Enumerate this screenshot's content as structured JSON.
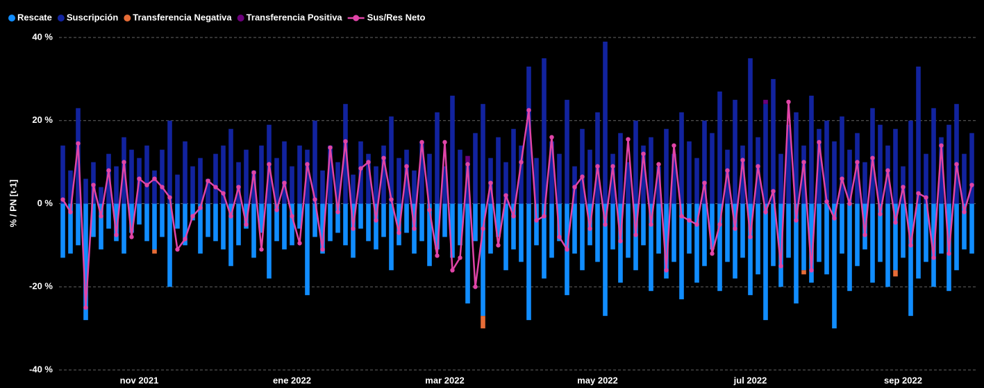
{
  "chart_data": {
    "type": "bar-line",
    "y_label": "% / PN [t-1]",
    "ylim": [
      -40,
      40
    ],
    "yticks": [
      {
        "value": -40,
        "label": "-40 %"
      },
      {
        "value": -20,
        "label": "-20 %"
      },
      {
        "value": 0,
        "label": "0 %"
      },
      {
        "value": 20,
        "label": "20 %"
      },
      {
        "value": 40,
        "label": "40 %"
      }
    ],
    "grid": true,
    "legend": "top-left",
    "categories": [
      null,
      null,
      null,
      null,
      null,
      null,
      null,
      null,
      null,
      null,
      "nov 2021",
      null,
      null,
      null,
      null,
      null,
      null,
      null,
      null,
      null,
      null,
      null,
      null,
      null,
      null,
      null,
      null,
      null,
      null,
      null,
      "ene 2022",
      null,
      null,
      null,
      null,
      null,
      null,
      null,
      null,
      null,
      null,
      null,
      null,
      null,
      null,
      null,
      null,
      null,
      null,
      null,
      "mar 2022",
      null,
      null,
      null,
      null,
      null,
      null,
      null,
      null,
      null,
      null,
      null,
      null,
      null,
      null,
      null,
      null,
      null,
      null,
      null,
      "may 2022",
      null,
      null,
      null,
      null,
      null,
      null,
      null,
      null,
      null,
      null,
      null,
      null,
      null,
      null,
      null,
      null,
      null,
      null,
      null,
      "jul 2022",
      null,
      null,
      null,
      null,
      null,
      null,
      null,
      null,
      null,
      null,
      null,
      null,
      null,
      null,
      null,
      null,
      null,
      null,
      null,
      "sep 2022",
      null,
      null,
      null,
      null,
      null,
      null,
      null,
      null,
      null
    ],
    "series": [
      {
        "name": "Rescate",
        "color": "#118dff",
        "values": [
          -13,
          -12,
          -10,
          -28,
          -8,
          -11,
          -6,
          -9,
          -12,
          -7,
          -5,
          -9,
          -11,
          -8,
          -20,
          -6,
          -10,
          -4,
          -12,
          -8,
          -9,
          -11,
          -15,
          -10,
          -6,
          -13,
          -7,
          -18,
          -9,
          -11,
          -10,
          -6,
          -22,
          -8,
          -12,
          -9,
          -7,
          -10,
          -13,
          -6,
          -9,
          -11,
          -8,
          -16,
          -10,
          -7,
          -12,
          -9,
          -15,
          -11,
          -8,
          -13,
          -10,
          -24,
          -9,
          -27,
          -12,
          -8,
          -16,
          -11,
          -14,
          -28,
          -10,
          -18,
          -13,
          -9,
          -22,
          -12,
          -16,
          -10,
          -14,
          -27,
          -11,
          -19,
          -13,
          -16,
          -10,
          -21,
          -12,
          -18,
          -14,
          -23,
          -12,
          -19,
          -15,
          -11,
          -21,
          -14,
          -18,
          -13,
          -22,
          -17,
          -28,
          -15,
          -20,
          -13,
          -24,
          -16,
          -19,
          -14,
          -17,
          -30,
          -12,
          -21,
          -15,
          -11,
          -19,
          -14,
          -20,
          -16,
          -13,
          -27,
          -18,
          -14,
          -20,
          -12,
          -21,
          -16,
          -11,
          -12
        ]
      },
      {
        "name": "Suscripción",
        "color": "#12239e",
        "values": [
          14,
          8,
          23,
          6,
          10,
          4,
          12,
          9,
          16,
          13,
          11,
          14,
          8,
          13,
          20,
          7,
          15,
          9,
          11,
          6,
          12,
          14,
          18,
          10,
          13,
          8,
          14,
          19,
          11,
          15,
          9,
          14,
          13,
          20,
          8,
          14,
          10,
          24,
          7,
          15,
          12,
          9,
          14,
          21,
          11,
          13,
          8,
          15,
          12,
          22,
          9,
          26,
          13,
          10,
          17,
          24,
          11,
          16,
          10,
          18,
          14,
          33,
          11,
          35,
          15,
          12,
          25,
          9,
          18,
          13,
          22,
          39,
          12,
          17,
          10,
          20,
          14,
          16,
          9,
          18,
          12,
          22,
          15,
          11,
          20,
          17,
          27,
          13,
          25,
          14,
          35,
          16,
          24,
          30,
          12,
          19,
          22,
          14,
          26,
          18,
          20,
          15,
          21,
          13,
          17,
          10,
          23,
          19,
          14,
          18,
          9,
          20,
          33,
          12,
          23,
          16,
          19,
          24,
          12,
          17
        ]
      },
      {
        "name": "Transferencia Negativa",
        "color": "#e66c37",
        "values": [
          0,
          0,
          0,
          0,
          0,
          0,
          0,
          0,
          0,
          0,
          0,
          0,
          -1,
          0,
          0,
          0,
          0,
          0,
          0,
          0,
          0,
          0,
          0,
          0,
          0,
          0,
          0,
          0,
          0,
          0,
          0,
          0,
          0,
          0,
          0,
          0,
          0,
          0,
          0,
          0,
          0,
          0,
          0,
          0,
          0,
          0,
          0,
          0,
          0,
          0,
          0,
          0,
          0,
          0,
          0,
          -3,
          0,
          0,
          0,
          0,
          0,
          0,
          0,
          0,
          0,
          0,
          0,
          0,
          0,
          0,
          0,
          0,
          0,
          0,
          0,
          0,
          0,
          0,
          0,
          0,
          0,
          0,
          0,
          0,
          0,
          0,
          0,
          0,
          0,
          0,
          0,
          0,
          0,
          0,
          0,
          0,
          0,
          -1,
          0,
          0,
          0,
          0,
          0,
          0,
          0,
          0,
          0,
          0,
          0,
          -1.5,
          0,
          0,
          0,
          0,
          0,
          0,
          0,
          0,
          0,
          0
        ]
      },
      {
        "name": "Transferencia Positiva",
        "color": "#6b007b",
        "values": [
          0,
          0,
          0,
          0,
          0,
          0,
          0,
          0,
          0,
          0,
          0,
          0,
          0,
          0,
          0,
          0,
          0,
          0,
          0,
          0,
          0,
          0,
          0,
          0,
          0,
          0,
          0,
          0,
          0,
          0,
          0,
          0,
          0,
          0,
          0,
          0,
          0,
          0,
          0,
          0,
          0,
          0,
          0,
          0,
          0,
          0,
          0,
          0,
          0,
          0,
          0,
          0,
          0,
          1.5,
          0,
          0,
          0,
          0,
          0,
          0,
          0,
          0,
          0,
          0,
          0,
          0,
          0,
          0,
          0,
          0,
          0,
          0,
          0,
          0,
          0,
          0,
          0,
          0,
          0,
          0,
          0,
          0,
          0,
          0,
          0,
          0,
          0,
          0,
          0,
          0,
          0,
          0,
          1,
          0,
          0,
          0,
          0,
          0,
          0,
          0,
          0,
          0,
          0,
          0,
          0,
          0,
          0,
          0,
          0,
          0,
          0,
          0,
          0,
          0,
          0,
          0,
          0,
          0,
          0,
          0
        ]
      },
      {
        "name": "Sus/Res Neto",
        "color": "#e044a7",
        "line": true,
        "values": [
          1,
          -2,
          14.5,
          -25,
          4.5,
          -3,
          8,
          -7.5,
          10,
          -8,
          6,
          4.5,
          6,
          4,
          1.5,
          -11,
          -8.5,
          -3,
          -1,
          5.5,
          4,
          2.5,
          -3,
          4,
          -5,
          7.5,
          -11,
          9.5,
          -1.5,
          5,
          -3,
          -9.5,
          9.5,
          1,
          -11,
          13.5,
          -2,
          15,
          -6,
          8.5,
          10,
          -4,
          11,
          1,
          -7,
          9,
          -6,
          14.8,
          -1.5,
          -12.5,
          14.8,
          -16,
          -13,
          9.5,
          -20,
          -6,
          5,
          -10,
          2,
          -3,
          10,
          22.5,
          -4,
          -3,
          16,
          -8,
          -11,
          4,
          6.5,
          -6,
          9,
          -5,
          9,
          -9,
          15.5,
          -7.5,
          12,
          -5,
          9.5,
          -16,
          14,
          -3,
          -4,
          -5,
          5,
          -12,
          -5,
          8,
          -6,
          10.5,
          -8,
          9,
          -2,
          3,
          -15,
          24.5,
          -4,
          10,
          -16,
          14.8,
          0.5,
          -3.5,
          6,
          0,
          10,
          -7.5,
          11,
          -2.5,
          8,
          -4.5,
          4,
          -10,
          2.5,
          1.5,
          -13,
          14,
          -12,
          9.5,
          -2,
          4.5
        ]
      }
    ]
  }
}
